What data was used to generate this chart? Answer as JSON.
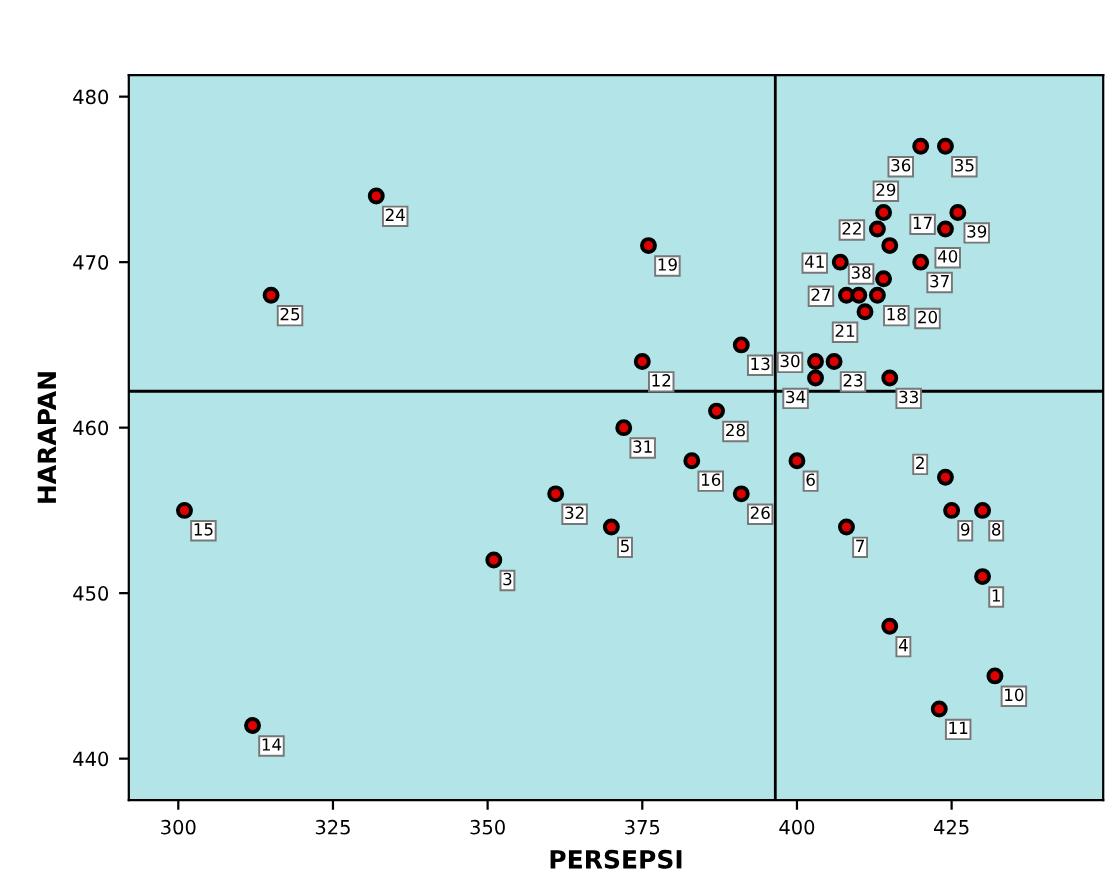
{
  "chart_data": {
    "type": "scatter",
    "xlabel": "PERSEPSI",
    "ylabel": "HARAPAN",
    "x": [
      430,
      424,
      351,
      415,
      370,
      400,
      408,
      430,
      425,
      432,
      423,
      375,
      391,
      312,
      301,
      383,
      415,
      413,
      376,
      414,
      411,
      413,
      406,
      332,
      315,
      391,
      408,
      387,
      414,
      403,
      372,
      361,
      415,
      403,
      424,
      420,
      420,
      410,
      426,
      424,
      407
    ],
    "series": [
      {
        "color": "#e00000",
        "values": [
          451,
          457,
          452,
          448,
          454,
          458,
          454,
          455,
          455,
          445,
          443,
          464,
          465,
          442,
          455,
          458,
          471,
          468,
          471,
          469,
          467,
          472,
          464,
          474,
          468,
          456,
          468,
          461,
          473,
          464,
          460,
          456,
          463,
          463,
          477,
          477,
          470,
          468,
          473,
          472,
          470
        ]
      }
    ],
    "annotations": [
      {
        "text": "1",
        "x": 430,
        "y": 451
      },
      {
        "text": "2",
        "x": 424,
        "y": 457
      },
      {
        "text": "3",
        "x": 351,
        "y": 452
      },
      {
        "text": "4",
        "x": 415,
        "y": 448
      },
      {
        "text": "5",
        "x": 370,
        "y": 454
      },
      {
        "text": "6",
        "x": 400,
        "y": 458
      },
      {
        "text": "7",
        "x": 408,
        "y": 454
      },
      {
        "text": "8",
        "x": 430,
        "y": 455
      },
      {
        "text": "9",
        "x": 425,
        "y": 455
      },
      {
        "text": "10",
        "x": 432,
        "y": 445
      },
      {
        "text": "11",
        "x": 423,
        "y": 443
      },
      {
        "text": "12",
        "x": 375,
        "y": 464
      },
      {
        "text": "13",
        "x": 391,
        "y": 465
      },
      {
        "text": "14",
        "x": 312,
        "y": 442
      },
      {
        "text": "15",
        "x": 301,
        "y": 455
      },
      {
        "text": "16",
        "x": 383,
        "y": 458
      },
      {
        "text": "17",
        "x": 415,
        "y": 471
      },
      {
        "text": "18",
        "x": 413,
        "y": 468
      },
      {
        "text": "19",
        "x": 376,
        "y": 471
      },
      {
        "text": "20",
        "x": 414,
        "y": 469
      },
      {
        "text": "21",
        "x": 411,
        "y": 467
      },
      {
        "text": "22",
        "x": 413,
        "y": 472
      },
      {
        "text": "23",
        "x": 406,
        "y": 464
      },
      {
        "text": "24",
        "x": 332,
        "y": 474
      },
      {
        "text": "25",
        "x": 315,
        "y": 468
      },
      {
        "text": "26",
        "x": 391,
        "y": 456
      },
      {
        "text": "27",
        "x": 408,
        "y": 468
      },
      {
        "text": "28",
        "x": 387,
        "y": 461
      },
      {
        "text": "29",
        "x": 414,
        "y": 473
      },
      {
        "text": "30",
        "x": 403,
        "y": 464
      },
      {
        "text": "31",
        "x": 372,
        "y": 460
      },
      {
        "text": "32",
        "x": 361,
        "y": 456
      },
      {
        "text": "33",
        "x": 415,
        "y": 463
      },
      {
        "text": "34",
        "x": 403,
        "y": 463
      },
      {
        "text": "35",
        "x": 424,
        "y": 477
      },
      {
        "text": "36",
        "x": 420,
        "y": 477
      },
      {
        "text": "37",
        "x": 420,
        "y": 470
      },
      {
        "text": "38",
        "x": 410,
        "y": 468
      },
      {
        "text": "39",
        "x": 426,
        "y": 473
      },
      {
        "text": "40",
        "x": 424,
        "y": 472
      },
      {
        "text": "41",
        "x": 407,
        "y": 470
      }
    ],
    "xlim": [
      292,
      449.5
    ],
    "ylim": [
      437.5,
      481.3
    ],
    "xticks": [
      300,
      325,
      350,
      375,
      400,
      425
    ],
    "yticks": [
      440,
      450,
      460,
      470,
      480
    ],
    "ref_lines": [
      {
        "axis": "x",
        "value": 396.5,
        "color": "#000000"
      },
      {
        "axis": "y",
        "value": 462.2,
        "color": "#000000"
      }
    ],
    "grid": false,
    "marker": "circle"
  }
}
